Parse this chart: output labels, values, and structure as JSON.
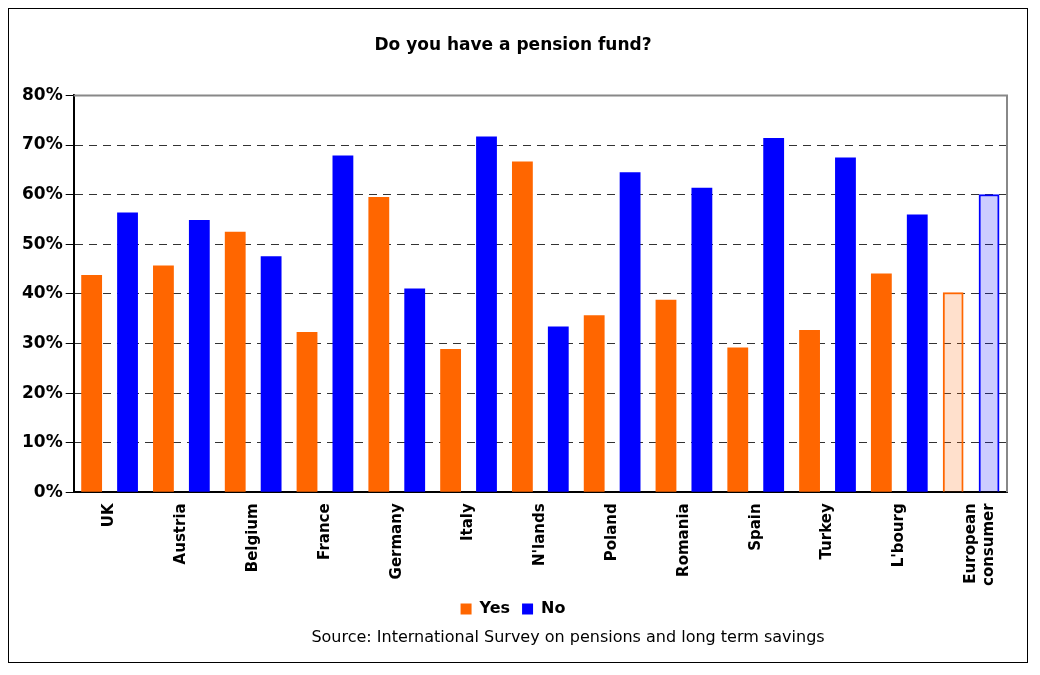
{
  "chart_data": {
    "type": "bar",
    "title": "Do you have a pension fund?",
    "categories": [
      "UK",
      "Austria",
      "Belgium",
      "France",
      "Germany",
      "Italy",
      "N'lands",
      "Poland",
      "Romania",
      "Spain",
      "Turkey",
      "L'bourg",
      "European\nconsumer"
    ],
    "series": [
      {
        "name": "Yes",
        "color": "#ff6600",
        "values": [
          43.8,
          45.7,
          52.5,
          32.3,
          59.5,
          28.9,
          66.7,
          35.7,
          38.8,
          29.2,
          32.7,
          44.1,
          40.3
        ]
      },
      {
        "name": "No",
        "color": "#0000ff",
        "values": [
          56.4,
          54.9,
          47.6,
          67.9,
          41.1,
          71.7,
          33.4,
          64.5,
          61.4,
          71.4,
          67.5,
          56.0,
          60.1
        ]
      }
    ],
    "ylim": [
      0,
      80
    ],
    "yticks": [
      {
        "value": 0,
        "label": "0%"
      },
      {
        "value": 10,
        "label": "10%"
      },
      {
        "value": 20,
        "label": "20%"
      },
      {
        "value": 30,
        "label": "30%"
      },
      {
        "value": 40,
        "label": "40%"
      },
      {
        "value": 50,
        "label": "50%"
      },
      {
        "value": 60,
        "label": "60%"
      },
      {
        "value": 70,
        "label": "70%"
      },
      {
        "value": 80,
        "label": "80%"
      }
    ],
    "grid": "y",
    "legend": "bottom",
    "annotations": [
      "Source: International Survey on pensions and long term savings"
    ]
  }
}
